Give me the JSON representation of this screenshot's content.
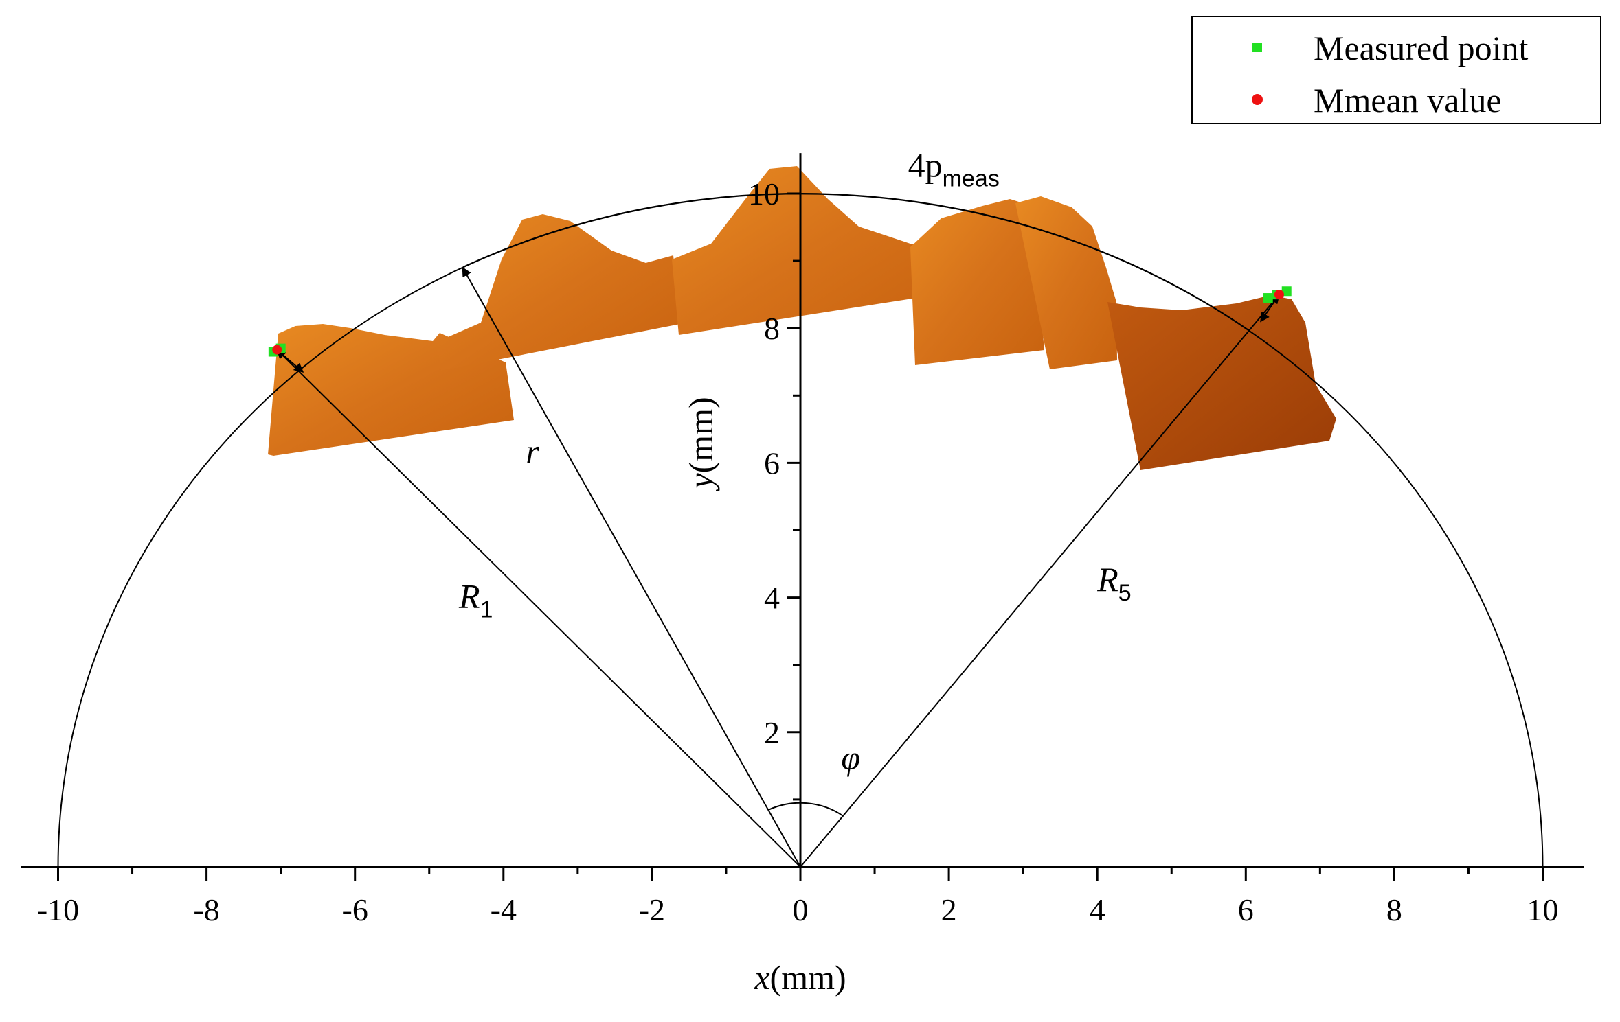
{
  "chart_data": {
    "type": "scatter",
    "xlabel_var": "x",
    "xlabel_unit": "(mm)",
    "ylabel_var": "y",
    "ylabel_unit": "(mm)",
    "xlim": [
      -10,
      10
    ],
    "ylim": [
      0,
      10
    ],
    "x_ticks": [
      -10,
      -8,
      -6,
      -4,
      -2,
      0,
      2,
      4,
      6,
      8,
      10
    ],
    "x_tick_labels": [
      "-10",
      "-8",
      "-6",
      "-4",
      "-2",
      "0",
      "2",
      "4",
      "6",
      "8",
      "10"
    ],
    "y_ticks": [
      2,
      4,
      6,
      8,
      10
    ],
    "y_tick_labels": [
      "2",
      "4",
      "6",
      "8",
      "10"
    ],
    "circle_radius": 10,
    "legend_position": "top-right",
    "series": [
      {
        "name": "Measured point",
        "marker": "square",
        "color": "#22e022",
        "points": [
          [
            -7.1,
            7.65
          ],
          [
            -7.0,
            7.7
          ],
          [
            6.3,
            8.45
          ],
          [
            6.42,
            8.5
          ],
          [
            6.55,
            8.55
          ]
        ]
      },
      {
        "name": "Mmean value",
        "marker": "circle",
        "color": "#ee1111",
        "points": [
          [
            -7.05,
            7.68
          ],
          [
            6.45,
            8.5
          ]
        ]
      }
    ],
    "annotations": {
      "R1": {
        "main": "R",
        "sub": "1",
        "x": -4.6,
        "y": 3.85
      },
      "r": {
        "main": "r",
        "x": -3.7,
        "y": 6.0
      },
      "R5": {
        "main": "R",
        "sub": "5",
        "x": 4.0,
        "y": 4.1
      },
      "phi": {
        "main": "φ",
        "x": 0.55,
        "y": 1.45
      },
      "pmeas": {
        "main": "4p",
        "sub": "meas",
        "x": 1.45,
        "y": 10.25
      }
    },
    "image_overlay": "orange-profile-scan",
    "colors": {
      "scan_dark": "#b04a08",
      "scan_light": "#e8851c"
    }
  }
}
